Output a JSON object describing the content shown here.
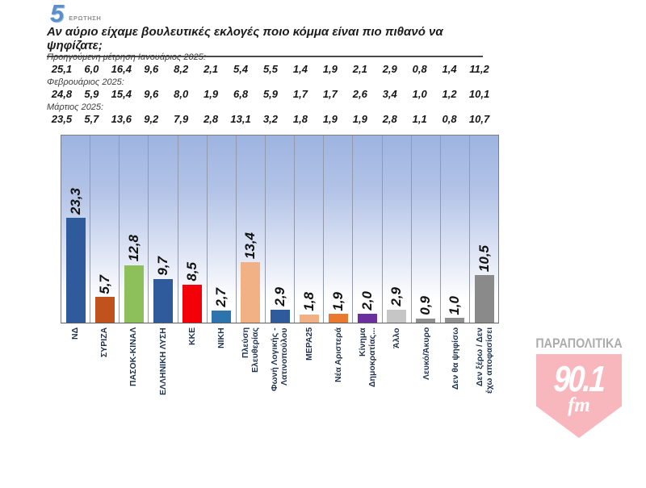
{
  "header": {
    "question_number": "5",
    "question_label": "ΕΡΩΤΗΣΗ",
    "title": "Αν αύριο είχαμε βουλευτικές εκλογές ποιο κόμμα είναι πιο πιθανό να ψηφίζατε;"
  },
  "previous_measurements": {
    "rows": [
      {
        "label": "Προηγούμενη μέτρηση Ιανουάριος 2025:",
        "values": [
          "25,1",
          "6,0",
          "16,4",
          "9,6",
          "8,2",
          "2,1",
          "5,4",
          "5,5",
          "1,4",
          "1,9",
          "2,1",
          "2,9",
          "0,8",
          "1,4",
          "11,2"
        ]
      },
      {
        "label": "Φεβρουάριος 2025:",
        "values": [
          "24,8",
          "5,9",
          "15,4",
          "9,6",
          "8,0",
          "1,9",
          "6,8",
          "5,9",
          "1,7",
          "1,7",
          "2,6",
          "3,4",
          "1,0",
          "1,2",
          "10,1"
        ]
      },
      {
        "label": "Μάρτιος 2025:",
        "values": [
          "23,5",
          "5,7",
          "13,6",
          "9,2",
          "7,9",
          "2,8",
          "13,1",
          "3,2",
          "1,8",
          "1,9",
          "1,9",
          "2,8",
          "1,1",
          "0,8",
          "10,7"
        ]
      }
    ]
  },
  "chart_data": {
    "type": "bar",
    "title": "Αν αύριο είχαμε βουλευτικές εκλογές ποιο κόμμα είναι πιο πιθανό να ψηφίζατε;",
    "categories": [
      "ΝΔ",
      "ΣΥΡΙΖΑ",
      "ΠΑΣΟΚ-ΚΙΝΑΛ",
      "ΕΛΛΗΝΙΚΗ ΛΥΣΗ",
      "ΚΚΕ",
      "ΝΙΚΗ",
      "Πλεύση\nΕλευθερίας",
      "Φωνή Λογικής -\nΛατινοπούλου",
      "ΜΕΡΑ25",
      "Νέα Αριστερά",
      "Κίνημα\nΔημοκρατίας...",
      "Άλλο",
      "Λευκό/Άκυρο",
      "Δεν θα ψηφίσω",
      "Δεν ξέρω / Δεν\nέχω αποφασίσει"
    ],
    "values": [
      23.3,
      5.7,
      12.8,
      9.7,
      8.5,
      2.7,
      13.4,
      2.9,
      1.8,
      1.9,
      2.0,
      2.9,
      0.9,
      1.0,
      10.5
    ],
    "value_labels": [
      "23,3",
      "5,7",
      "12,8",
      "9,7",
      "8,5",
      "2,7",
      "13,4",
      "2,9",
      "1,8",
      "1,9",
      "2,0",
      "2,9",
      "0,9",
      "1,0",
      "10,5"
    ],
    "bar_colors": [
      "#2f5b9c",
      "#c0521d",
      "#8dc05a",
      "#2f5b9c",
      "#f40009",
      "#2d74ae",
      "#f2b185",
      "#2f5b9c",
      "#f2b185",
      "#e8792e",
      "#6c2fa0",
      "#c6c6c6",
      "#8f8f8f",
      "#8f8f8f",
      "#8a8a8a"
    ],
    "previous_series": [
      {
        "name": "Προηγούμενη μέτρηση Ιανουάριος 2025",
        "values": [
          25.1,
          6.0,
          16.4,
          9.6,
          8.2,
          2.1,
          5.4,
          5.5,
          1.4,
          1.9,
          2.1,
          2.9,
          0.8,
          1.4,
          11.2
        ]
      },
      {
        "name": "Φεβρουάριος 2025",
        "values": [
          24.8,
          5.9,
          15.4,
          9.6,
          8.0,
          1.9,
          6.8,
          5.9,
          1.7,
          1.7,
          2.6,
          3.4,
          1.0,
          1.2,
          10.1
        ]
      },
      {
        "name": "Μάρτιος 2025",
        "values": [
          23.5,
          5.7,
          13.6,
          9.2,
          7.9,
          2.8,
          13.1,
          3.2,
          1.8,
          1.9,
          1.9,
          2.8,
          1.1,
          0.8,
          10.7
        ]
      }
    ],
    "xlabel": "",
    "ylabel": "",
    "ylim": [
      0,
      41
    ],
    "grid": "vertical-column-separators",
    "legend": "none",
    "value_label_rotation": 90,
    "category_label_rotation": 90
  },
  "branding": {
    "station_name": "ΠΑΡΑΠΟΛΙΤΙΚΑ",
    "frequency": "90.1",
    "fm_label": "fm",
    "badge_color": "#f7b7bd"
  }
}
